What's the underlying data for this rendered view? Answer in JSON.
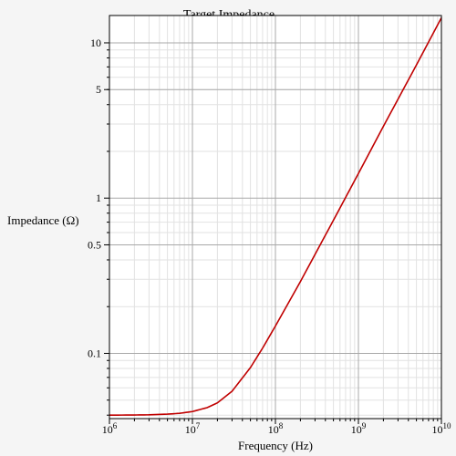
{
  "chart_data": {
    "type": "line",
    "title": "Target Impedance",
    "xlabel": "Frequency (Hz)",
    "ylabel": "Impedance (Ω)",
    "x_scale": "log",
    "y_scale": "log",
    "xlim": [
      1000000,
      10000000000
    ],
    "ylim": [
      0.038,
      15
    ],
    "grid": true,
    "x_ticks": [
      {
        "value": 1000000,
        "base": "10",
        "exp": "6"
      },
      {
        "value": 10000000,
        "base": "10",
        "exp": "7"
      },
      {
        "value": 100000000,
        "base": "10",
        "exp": "8"
      },
      {
        "value": 1000000000,
        "base": "10",
        "exp": "9"
      },
      {
        "value": 10000000000,
        "base": "10",
        "exp": "10"
      }
    ],
    "y_ticks": [
      {
        "value": 0.1,
        "label": "0.1"
      },
      {
        "value": 0.5,
        "label": "0.5"
      },
      {
        "value": 1,
        "label": "1"
      },
      {
        "value": 5,
        "label": "5"
      },
      {
        "value": 10,
        "label": "10"
      }
    ],
    "series": [
      {
        "color": "#c00000",
        "x": [
          1000000,
          2000000,
          3000000,
          5000000,
          7000000,
          10000000,
          15000000,
          20000000,
          30000000,
          50000000,
          70000000,
          100000000,
          200000000,
          500000000,
          1000000000,
          2000000000,
          5000000000,
          10000000000
        ],
        "y": [
          0.04,
          0.0401,
          0.0402,
          0.0406,
          0.0411,
          0.0422,
          0.0447,
          0.048,
          0.057,
          0.081,
          0.108,
          0.15,
          0.29,
          0.72,
          1.44,
          2.9,
          7.2,
          14.5
        ]
      }
    ]
  }
}
